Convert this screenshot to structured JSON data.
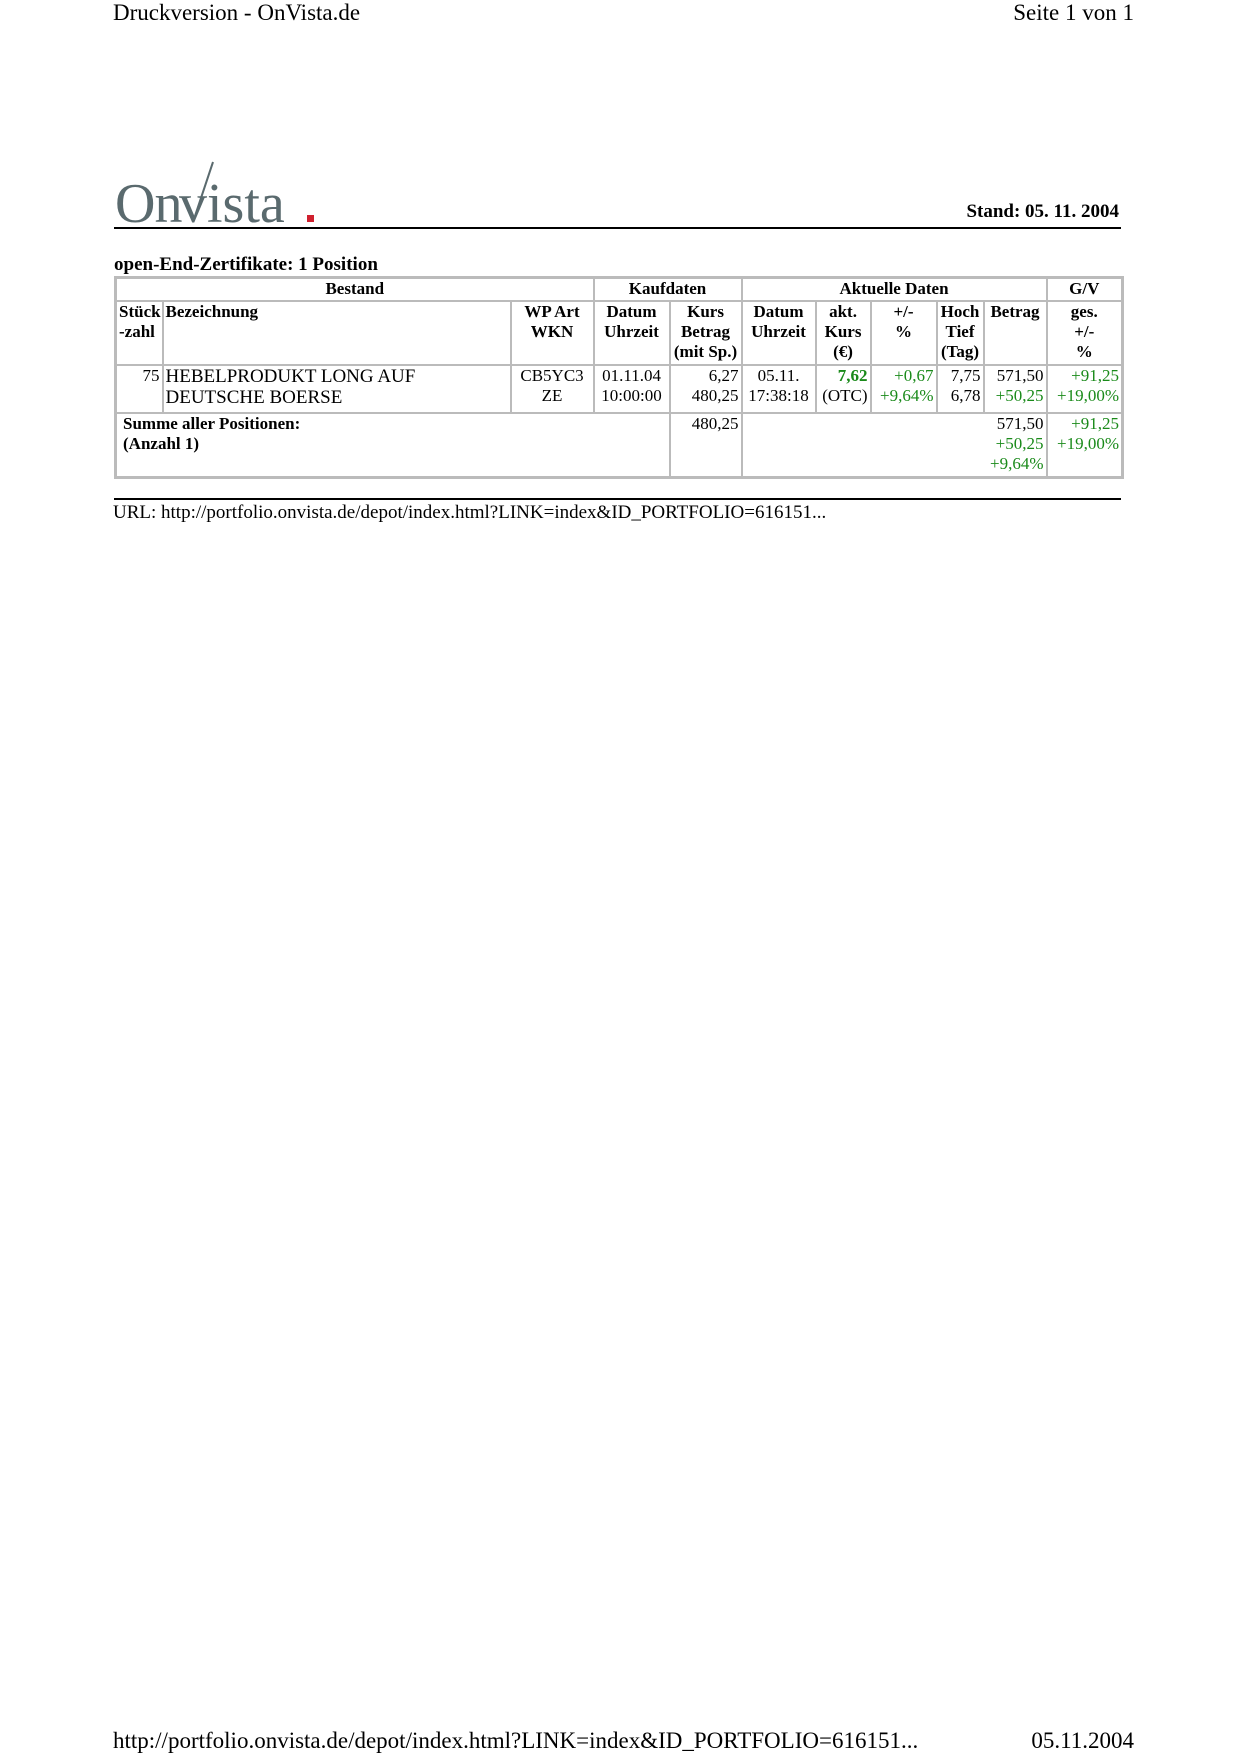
{
  "header": {
    "title": "Druckversion - OnVista.de",
    "page": "Seite 1 von 1"
  },
  "logo": {
    "text": "OnVista",
    "accent": "#d0202e",
    "color": "#5a6a6e"
  },
  "stand": "Stand: 05. 11. 2004",
  "section_title": "open-End-Zertifikate: 1 Position",
  "table": {
    "groups": [
      "Bestand",
      "Kaufdaten",
      "Aktuelle Daten",
      "G/V"
    ],
    "cols": {
      "stueck": [
        "Stück",
        "-zahl"
      ],
      "bez": "Bezeichnung",
      "wp": [
        "WP Art",
        "WKN"
      ],
      "k_datum": [
        "Datum",
        "Uhrzeit"
      ],
      "k_kurs": [
        "Kurs",
        "Betrag",
        "(mit Sp.)"
      ],
      "a_datum": [
        "Datum",
        "Uhrzeit"
      ],
      "a_kurs": [
        "akt.",
        "Kurs",
        "(€)"
      ],
      "a_pm": [
        "+/-",
        "%"
      ],
      "a_hoch": [
        "Hoch",
        "Tief",
        "(Tag)"
      ],
      "a_betrag": "Betrag",
      "gv": [
        "ges.",
        "+/-",
        "%"
      ]
    },
    "row": {
      "stueck": "75",
      "bez": [
        "HEBELPRODUKT LONG AUF",
        "DEUTSCHE BOERSE"
      ],
      "wp": [
        "CB5YC3",
        "ZE"
      ],
      "k_datum": [
        "01.11.04",
        "10:00:00"
      ],
      "k_kurs": [
        "6,27",
        "480,25"
      ],
      "a_datum": [
        "05.11.",
        "17:38:18"
      ],
      "a_kurs": [
        "7,62",
        "(OTC)"
      ],
      "a_pm": [
        "+0,67",
        "+9,64%"
      ],
      "a_hoch": [
        "7,75",
        "6,78"
      ],
      "a_betrag": [
        "571,50",
        "+50,25"
      ],
      "gv": [
        "+91,25",
        "+19,00%"
      ]
    },
    "summary": {
      "label": [
        "Summe aller Positionen:",
        "(Anzahl 1)"
      ],
      "kauf": "480,25",
      "betrag": [
        "571,50",
        "+50,25",
        "+9,64%"
      ],
      "gv": [
        "+91,25",
        "+19,00%"
      ]
    }
  },
  "url": "URL: http://portfolio.onvista.de/depot/index.html?LINK=index&ID_PORTFOLIO=616151...",
  "footer": {
    "url": "http://portfolio.onvista.de/depot/index.html?LINK=index&ID_PORTFOLIO=616151...",
    "date": "05.11.2004"
  },
  "colors": {
    "positive": "#1a8a1a",
    "border": "#bbbbbb"
  }
}
